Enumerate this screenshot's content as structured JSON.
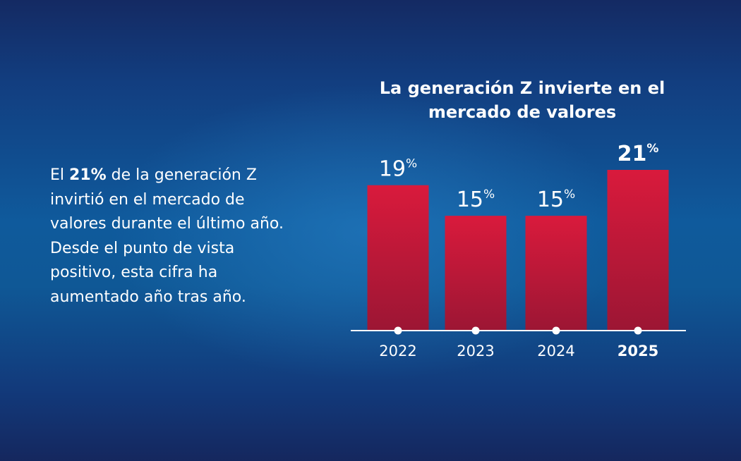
{
  "description": {
    "pre": "El ",
    "highlight": "21%",
    "post": " de la generación Z invirtió en el mercado de valores durante el último año. Desde el punto de vista positivo, esta cifra ha aumentado año tras año."
  },
  "chart_data": {
    "type": "bar",
    "title": "La generación Z invierte en el mercado de valores",
    "categories": [
      "2022",
      "2023",
      "2024",
      "2025"
    ],
    "values": [
      19,
      15,
      15,
      21
    ],
    "value_labels": [
      "19",
      "15",
      "15",
      "21"
    ],
    "unit": "%",
    "highlight_category": "2025",
    "bar_color": "#d91a3c",
    "bar_color_dark": "#9c1634",
    "axis_color": "#ffffff",
    "ylim": [
      0,
      21
    ],
    "grid": false
  }
}
